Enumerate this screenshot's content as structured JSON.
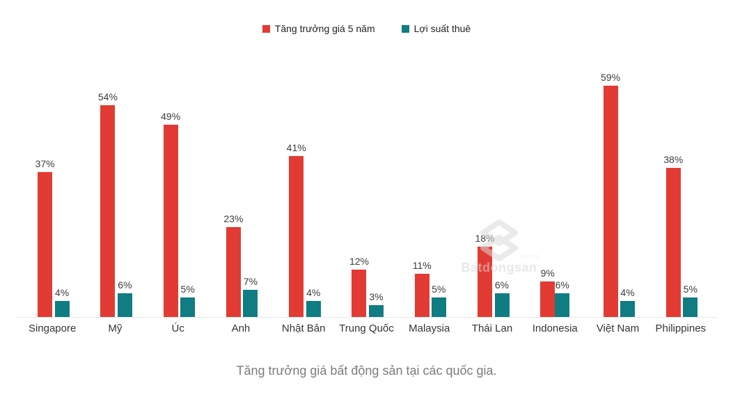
{
  "legend": {
    "items": [
      {
        "label": "Tăng trưởng giá 5 năm",
        "color": "#e23b33"
      },
      {
        "label": "Lợi suất thuê",
        "color": "#0f7d81"
      }
    ]
  },
  "chart_data": {
    "type": "bar",
    "title": "",
    "xlabel": "",
    "ylabel": "",
    "value_suffix": "%",
    "ylim": [
      0,
      64
    ],
    "grid": false,
    "legend_position": "top",
    "categories": [
      "Singapore",
      "Mỹ",
      "Úc",
      "Anh",
      "Nhật Bản",
      "Trung Quốc",
      "Malaysia",
      "Thái Lan",
      "Indonesia",
      "Việt Nam",
      "Philippines"
    ],
    "series": [
      {
        "name": "Tăng trưởng giá 5 năm",
        "key": "price-growth-5y",
        "color": "#e23b33",
        "values": [
          37,
          54,
          49,
          23,
          41,
          12,
          11,
          18,
          9,
          59,
          38
        ]
      },
      {
        "name": "Lợi suất thuê",
        "key": "rental-yield",
        "color": "#0f7d81",
        "values": [
          4,
          6,
          5,
          7,
          4,
          3,
          5,
          6,
          6,
          4,
          5
        ]
      }
    ]
  },
  "watermark": {
    "brand": "Batdongsan",
    "suffix": ".com.vn"
  },
  "caption": "Tăng trưởng giá bất động sản tại các quốc gia."
}
